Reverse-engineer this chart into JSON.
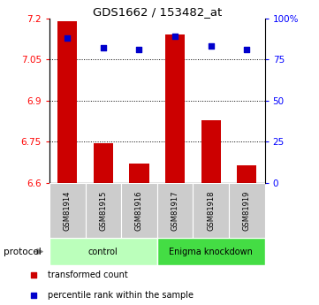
{
  "title": "GDS1662 / 153482_at",
  "samples": [
    "GSM81914",
    "GSM81915",
    "GSM81916",
    "GSM81917",
    "GSM81918",
    "GSM81919"
  ],
  "bar_values": [
    7.19,
    6.745,
    6.67,
    7.14,
    6.83,
    6.665
  ],
  "percentile_values": [
    88,
    82,
    81,
    89,
    83,
    81
  ],
  "ymin": 6.6,
  "ymax": 7.2,
  "y_ticks": [
    6.6,
    6.75,
    6.9,
    7.05,
    7.2
  ],
  "y_tick_labels": [
    "6.6",
    "6.75",
    "6.9",
    "7.05",
    "7.2"
  ],
  "y2min": 0,
  "y2max": 100,
  "y2_ticks": [
    0,
    25,
    50,
    75,
    100
  ],
  "y2_tick_labels": [
    "0",
    "25",
    "50",
    "75",
    "100%"
  ],
  "bar_color": "#cc0000",
  "scatter_color": "#0000cc",
  "groups": [
    {
      "label": "control",
      "indices": [
        0,
        1,
        2
      ],
      "color": "#bbffbb"
    },
    {
      "label": "Enigma knockdown",
      "indices": [
        3,
        4,
        5
      ],
      "color": "#44dd44"
    }
  ],
  "protocol_label": "protocol",
  "legend_items": [
    {
      "label": "transformed count",
      "color": "#cc0000"
    },
    {
      "label": "percentile rank within the sample",
      "color": "#0000cc"
    }
  ],
  "sample_box_color": "#cccccc",
  "figwidth": 3.61,
  "figheight": 3.45,
  "dpi": 100
}
